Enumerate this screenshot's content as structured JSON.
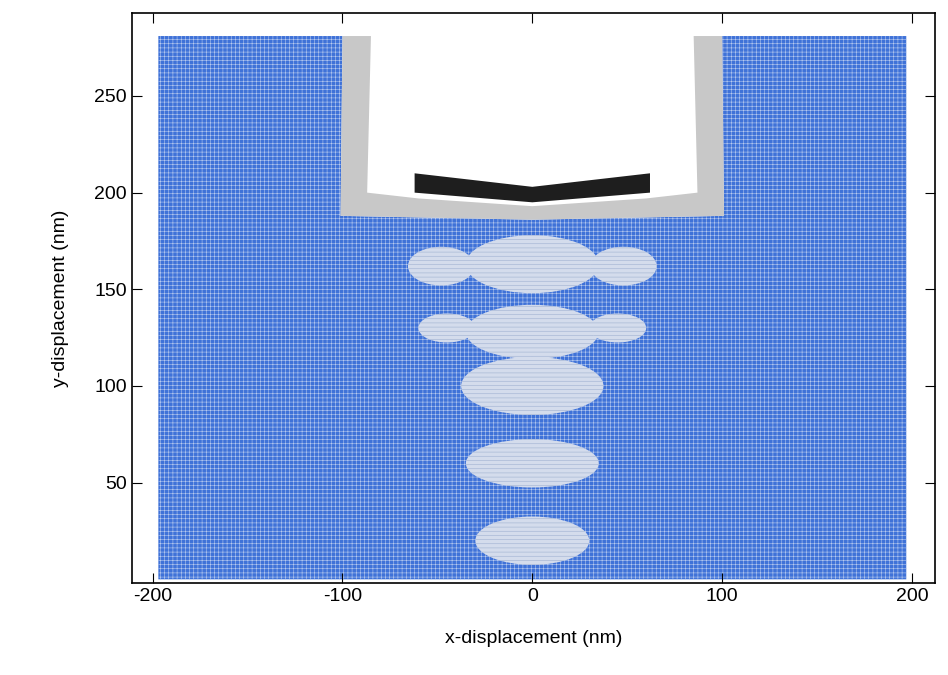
{
  "chart_data": {
    "type": "mesh",
    "xlabel": "x-displacement (nm)",
    "ylabel": "y-displacement (nm)",
    "xlim": [
      -211,
      212
    ],
    "ylim": [
      -2,
      293
    ],
    "xticks": [
      -200,
      -100,
      0,
      100,
      200
    ],
    "yticks": [
      50,
      100,
      150,
      200,
      250
    ],
    "substrate": {
      "color": "#3f72d8",
      "x": [
        -197,
        197,
        197,
        100,
        101,
        0,
        -101,
        -100,
        -197
      ],
      "y": [
        0,
        0,
        281,
        281,
        188,
        186,
        188,
        281,
        281
      ]
    },
    "indenter": {
      "color": "#c8c8c8",
      "x": [
        -100,
        -101,
        0,
        101,
        100,
        85,
        87,
        60,
        0,
        -60,
        -87,
        -85
      ],
      "y": [
        281,
        188,
        186,
        188,
        281,
        281,
        200,
        197,
        193,
        197,
        200,
        281
      ]
    },
    "plate": {
      "color": "#1e1e1e",
      "x": [
        -62,
        0,
        62,
        62,
        0,
        -62
      ],
      "y": [
        210,
        203,
        210,
        200,
        195,
        200
      ]
    },
    "light_regions": {
      "color": "#d4dcec",
      "x": [
        0,
        0,
        0,
        0,
        0,
        -48,
        48,
        -45,
        45
      ],
      "y": [
        163,
        128,
        100,
        60,
        20,
        162,
        162,
        130,
        130
      ],
      "width": [
        70,
        70,
        75,
        70,
        60,
        35,
        35,
        30,
        30
      ],
      "height": [
        30,
        28,
        30,
        25,
        25,
        20,
        20,
        15,
        15
      ]
    }
  }
}
